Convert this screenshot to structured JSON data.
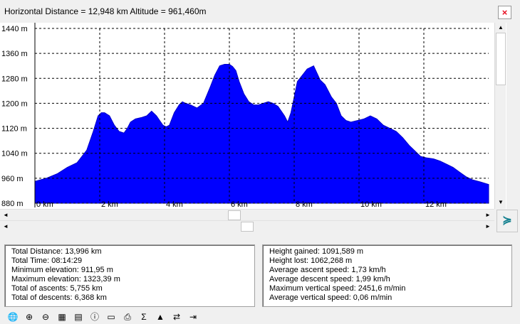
{
  "window": {
    "title": "Horizontal Distance = 12,948 km   Altitude =  961,460m",
    "close_symbol": "×"
  },
  "chart_data": {
    "type": "area",
    "xlabel": "",
    "ylabel": "",
    "x_unit": "km",
    "y_unit": "m",
    "fill_color": "#0000ff",
    "grid": true,
    "xlim": [
      0,
      14.0
    ],
    "ylim": [
      880,
      1440
    ],
    "y_ticks": [
      1440,
      1360,
      1280,
      1200,
      1120,
      1040,
      960,
      880
    ],
    "y_tick_labels": [
      "1440 m",
      "1360 m",
      "1280 m",
      "1200 m",
      "1120 m",
      "1040 m",
      "960 m",
      "880 m"
    ],
    "x_ticks": [
      0,
      2,
      4,
      6,
      8,
      10,
      12
    ],
    "x_tick_labels": [
      "0 km",
      "2 km",
      "4 km",
      "6 km",
      "8 km",
      "10 km",
      "12 km"
    ],
    "series": [
      {
        "x": [
          0.0,
          0.35,
          0.7,
          1.0,
          1.3,
          1.6,
          1.8,
          1.95,
          2.05,
          2.15,
          2.3,
          2.45,
          2.6,
          2.75,
          2.85,
          2.95,
          3.1,
          3.3,
          3.45,
          3.6,
          3.75,
          3.85,
          3.95,
          4.05,
          4.15,
          4.3,
          4.45,
          4.55,
          4.65,
          4.8,
          5.0,
          5.2,
          5.4,
          5.55,
          5.7,
          5.85,
          6.0,
          6.1,
          6.2,
          6.3,
          6.45,
          6.6,
          6.75,
          6.9,
          7.05,
          7.2,
          7.35,
          7.5,
          7.7,
          7.8,
          7.9,
          8.0,
          8.1,
          8.25,
          8.4,
          8.6,
          8.8,
          8.95,
          9.05,
          9.15,
          9.3,
          9.45,
          9.6,
          9.75,
          9.95,
          10.15,
          10.35,
          10.55,
          10.75,
          10.95,
          11.15,
          11.35,
          11.55,
          11.75,
          11.9,
          12.1,
          12.3,
          12.5,
          12.7,
          12.9,
          13.1,
          13.3,
          13.5,
          13.75,
          14.0
        ],
        "y": [
          950,
          960,
          975,
          995,
          1010,
          1050,
          1110,
          1160,
          1170,
          1170,
          1160,
          1130,
          1110,
          1105,
          1120,
          1140,
          1150,
          1155,
          1160,
          1175,
          1160,
          1145,
          1130,
          1125,
          1130,
          1170,
          1195,
          1205,
          1200,
          1195,
          1185,
          1200,
          1250,
          1290,
          1320,
          1325,
          1325,
          1318,
          1305,
          1270,
          1230,
          1205,
          1195,
          1195,
          1200,
          1205,
          1200,
          1190,
          1160,
          1140,
          1170,
          1220,
          1270,
          1290,
          1310,
          1320,
          1275,
          1260,
          1240,
          1220,
          1200,
          1160,
          1145,
          1140,
          1145,
          1150,
          1160,
          1150,
          1130,
          1120,
          1110,
          1090,
          1065,
          1045,
          1030,
          1025,
          1022,
          1015,
          1005,
          995,
          980,
          965,
          955,
          948,
          940
        ]
      }
    ]
  },
  "scrollbars": {
    "v_up": "▲",
    "v_down": "▼",
    "left_arrow": "◄",
    "right_arrow": "►"
  },
  "expand_button": {
    "symbol": "≽"
  },
  "stats_left": [
    "Total Distance: 13,996 km",
    "Total Time: 08:14:29",
    "Minimum elevation: 911,95 m",
    "Maximum elevation: 1323,39 m",
    "Total of ascents: 5,755 km",
    "Total of descents: 6,368 km"
  ],
  "stats_right": [
    "Height gained: 1091,589 m",
    "Height lost: 1062,268 m",
    "Average ascent speed: 1,73 km/h",
    "Average descent speed: 1,99 km/h",
    "Maximum vertical speed: 2451,6 m/min",
    "Average vertical speed: 0,06 m/min"
  ],
  "toolbar": [
    {
      "icon": "globe-icon",
      "glyph": "🌐"
    },
    {
      "icon": "zoom-in-icon",
      "glyph": "⊕"
    },
    {
      "icon": "zoom-out-icon",
      "glyph": "⊖"
    },
    {
      "icon": "grid-icon",
      "glyph": "▦"
    },
    {
      "icon": "calculator-icon",
      "glyph": "▤"
    },
    {
      "icon": "inspect-icon",
      "glyph": "ⓘ"
    },
    {
      "icon": "document-icon",
      "glyph": "▭"
    },
    {
      "icon": "print-icon",
      "glyph": "⎙"
    },
    {
      "icon": "sum-icon",
      "glyph": "Σ"
    },
    {
      "icon": "shoe-icon",
      "glyph": "▲"
    },
    {
      "icon": "swap-icon",
      "glyph": "⇄"
    },
    {
      "icon": "export-icon",
      "glyph": "⇥"
    }
  ]
}
